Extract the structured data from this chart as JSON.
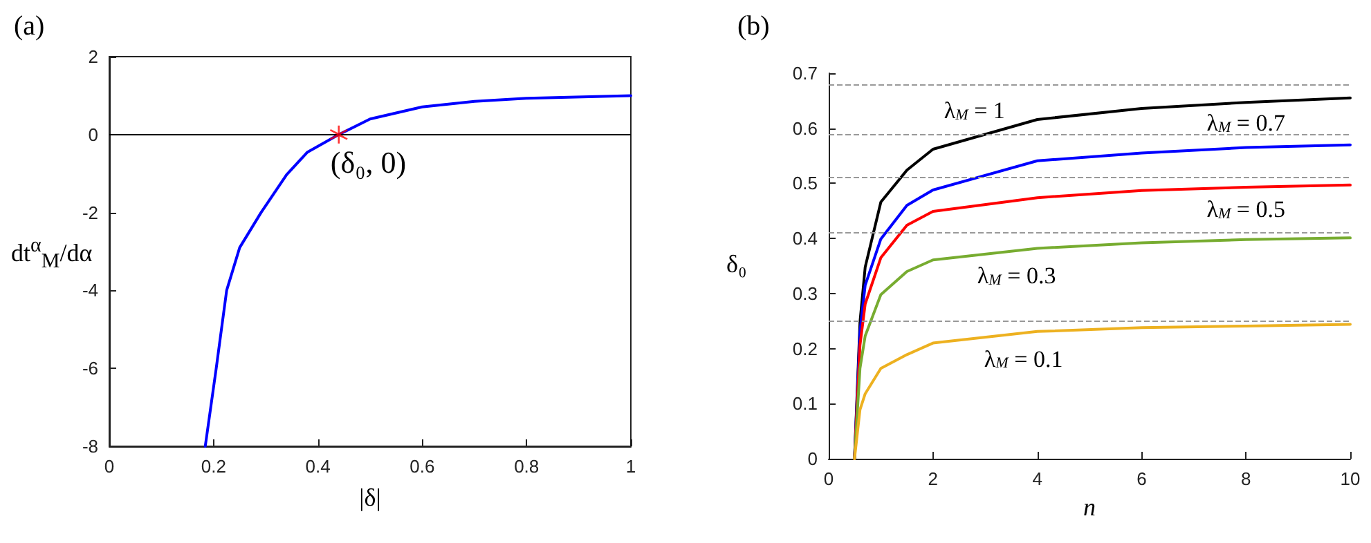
{
  "chart_data": [
    {
      "type": "line",
      "title": "(a)",
      "xlabel": "|δ|",
      "ylabel": "dt$^{α}$$_{M}$/dα",
      "xlim": [
        0,
        1
      ],
      "xticks": [
        0,
        0.2,
        0.4,
        0.6,
        0.8,
        1
      ],
      "ylim": [
        -8,
        2
      ],
      "yticks": [
        -8,
        -6,
        -4,
        -2,
        0,
        2
      ],
      "series": [
        {
          "color": "#0000ff",
          "x": [
            0.184,
            0.205,
            0.225,
            0.25,
            0.291,
            0.34,
            0.38,
            0.44,
            0.5,
            0.6,
            0.7,
            0.8,
            1
          ],
          "values": [
            -8,
            -6,
            -4,
            -2.9,
            -2,
            -1.03,
            -0.45,
            0,
            0.4,
            0.71,
            0.85,
            0.93,
            1
          ]
        },
        {
          "type": "scatter",
          "marker": "star",
          "color": "#ff0000",
          "x": [
            0.44
          ],
          "values": [
            0
          ]
        }
      ],
      "ref_lines": [
        {
          "axis": "y",
          "value": 0,
          "color": "#000000"
        }
      ],
      "annotations": [
        {
          "text": "(δ₀, 0)",
          "x": 0.44,
          "y": 0
        }
      ]
    },
    {
      "type": "line",
      "title": "(b)",
      "xlabel": "n",
      "ylabel": "δ₀",
      "xlim": [
        0,
        10
      ],
      "xticks": [
        0,
        2,
        4,
        6,
        8,
        10
      ],
      "ylim": [
        0,
        0.7
      ],
      "yticks": [
        0,
        0.1,
        0.2,
        0.3,
        0.4,
        0.5,
        0.6,
        0.7
      ],
      "series": [
        {
          "name": "λ$_{M}$ = 1",
          "color": "#000000",
          "x": [
            0.495,
            0.6,
            0.7,
            1,
            1.5,
            2,
            4,
            6,
            8,
            10
          ],
          "values": [
            0,
            0.248,
            0.348,
            0.466,
            0.524,
            0.562,
            0.616,
            0.636,
            0.647,
            0.655
          ]
        },
        {
          "name": "λ$_{M}$ = 0.7",
          "color": "#0000ff",
          "x": [
            0.495,
            0.6,
            0.7,
            1,
            1.5,
            2,
            4,
            6,
            8,
            10
          ],
          "values": [
            0,
            0.231,
            0.315,
            0.399,
            0.46,
            0.488,
            0.541,
            0.555,
            0.565,
            0.57
          ]
        },
        {
          "name": "λ$_{M}$ = 0.5",
          "color": "#ff0000",
          "x": [
            0.495,
            0.6,
            0.7,
            1,
            1.5,
            2,
            4,
            6,
            8,
            10
          ],
          "values": [
            0,
            0.206,
            0.281,
            0.365,
            0.424,
            0.449,
            0.474,
            0.487,
            0.493,
            0.497
          ]
        },
        {
          "name": "λ$_{M}$ = 0.3",
          "color": "#77ac30",
          "x": [
            0.495,
            0.6,
            0.7,
            1,
            1.5,
            2,
            4,
            6,
            8,
            10
          ],
          "values": [
            0,
            0.164,
            0.223,
            0.298,
            0.34,
            0.361,
            0.382,
            0.392,
            0.398,
            0.401
          ]
        },
        {
          "name": "λ$_{M}$ = 0.1",
          "color": "#edb120",
          "x": [
            0.495,
            0.6,
            0.7,
            1,
            1.5,
            2,
            4,
            6,
            8,
            10
          ],
          "values": [
            0,
            0.089,
            0.118,
            0.164,
            0.189,
            0.21,
            0.231,
            0.238,
            0.241,
            0.244
          ]
        }
      ],
      "ref_lines": [
        {
          "axis": "y",
          "value": 0.677,
          "color": "#999999",
          "line_style": "dashed"
        },
        {
          "axis": "y",
          "value": 0.589,
          "color": "#999999",
          "line_style": "dashed"
        },
        {
          "axis": "y",
          "value": 0.514,
          "color": "#999999",
          "line_style": "dashed"
        },
        {
          "axis": "y",
          "value": 0.413,
          "color": "#999999",
          "line_style": "dashed"
        },
        {
          "axis": "y",
          "value": 0.25,
          "color": "#999999",
          "line_style": "dashed"
        }
      ]
    }
  ]
}
